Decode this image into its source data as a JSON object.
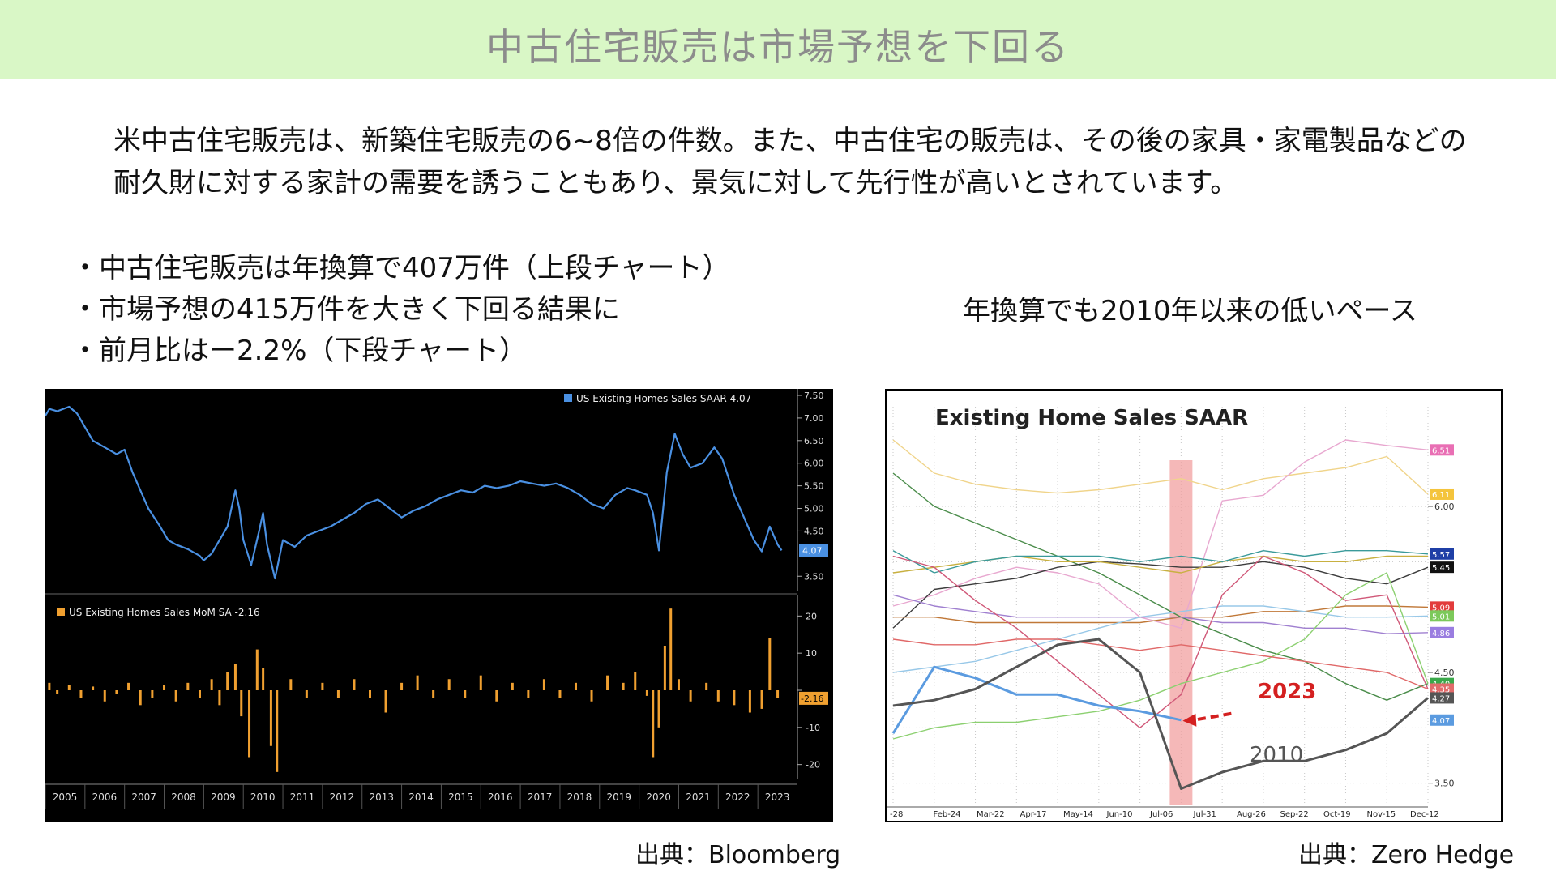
{
  "title": "中古住宅販売は市場予想を下回る",
  "intro": [
    "米中古住宅販売は、新築住宅販売の6~8倍の件数。また、中古住宅の販売は、その後の家具・家電製品などの",
    "耐久財に対する家計の需要を誘うこともあり、景気に対して先行性が高いとされています。"
  ],
  "bullets": [
    "・中古住宅販売は年換算で407万件（上段チャート）",
    "・市場予想の415万件を大きく下回る結果に",
    "・前月比はー2.2%（下段チャート）"
  ],
  "right_heading": "年換算でも2010年以来の低いペース",
  "sources": {
    "left": "出典：Bloomberg",
    "right": "出典：Zero Hedge"
  },
  "colors": {
    "title_bar": "#d9f7c6",
    "bloomberg_line": "#4a90e2",
    "bloomberg_bar": "#f0a030",
    "highlight_2023": "#f2a0a0",
    "arrow_2023": "#d42020"
  },
  "chart_data": [
    {
      "type": "line",
      "legend": "US Existing Homes Sales SAAR 4.07",
      "last_value_label": "4.07",
      "ylim": [
        3.2,
        7.5
      ],
      "yticks": [
        "7.50",
        "7.00",
        "6.50",
        "6.00",
        "5.50",
        "5.00",
        "4.50",
        "3.50"
      ],
      "ytick_values": [
        7.5,
        7.0,
        6.5,
        6.0,
        5.5,
        5.0,
        4.5,
        3.5
      ],
      "x_labels": [
        "2005",
        "2006",
        "2007",
        "2008",
        "2009",
        "2010",
        "2011",
        "2012",
        "2013",
        "2014",
        "2015",
        "2016",
        "2017",
        "2018",
        "2019",
        "2020",
        "2021",
        "2022",
        "2023"
      ],
      "x_start": 2005.0,
      "x_end": 2024.0,
      "series": [
        {
          "x": [
            2005.0,
            2005.1,
            2005.3,
            2005.6,
            2005.8,
            2006.0,
            2006.2,
            2006.5,
            2006.8,
            2007.0,
            2007.2,
            2007.4,
            2007.6,
            2007.9,
            2008.1,
            2008.3,
            2008.6,
            2008.9,
            2009.0,
            2009.2,
            2009.4,
            2009.6,
            2009.8,
            2009.9,
            2010.0,
            2010.2,
            2010.4,
            2010.5,
            2010.6,
            2010.8,
            2011.0,
            2011.3,
            2011.6,
            2011.9,
            2012.2,
            2012.5,
            2012.8,
            2013.1,
            2013.4,
            2013.7,
            2014.0,
            2014.3,
            2014.6,
            2014.9,
            2015.2,
            2015.5,
            2015.8,
            2016.1,
            2016.4,
            2016.7,
            2017.0,
            2017.3,
            2017.6,
            2017.9,
            2018.2,
            2018.5,
            2018.8,
            2019.1,
            2019.4,
            2019.7,
            2019.9,
            2020.2,
            2020.35,
            2020.5,
            2020.7,
            2020.9,
            2021.1,
            2021.3,
            2021.6,
            2021.9,
            2022.1,
            2022.4,
            2022.7,
            2022.9,
            2023.1,
            2023.3,
            2023.5,
            2023.6
          ],
          "y": [
            7.05,
            7.2,
            7.15,
            7.25,
            7.1,
            6.8,
            6.5,
            6.35,
            6.2,
            6.3,
            5.8,
            5.4,
            5.0,
            4.6,
            4.3,
            4.2,
            4.1,
            3.95,
            3.85,
            4.0,
            4.3,
            4.6,
            5.4,
            5.0,
            4.3,
            3.75,
            4.5,
            4.9,
            4.2,
            3.45,
            4.3,
            4.15,
            4.4,
            4.5,
            4.6,
            4.75,
            4.9,
            5.1,
            5.2,
            5.0,
            4.8,
            4.95,
            5.05,
            5.2,
            5.3,
            5.4,
            5.35,
            5.5,
            5.45,
            5.5,
            5.6,
            5.55,
            5.5,
            5.55,
            5.45,
            5.3,
            5.1,
            5.0,
            5.3,
            5.45,
            5.4,
            5.3,
            4.9,
            4.07,
            5.8,
            6.65,
            6.2,
            5.9,
            6.0,
            6.35,
            6.1,
            5.3,
            4.7,
            4.3,
            4.05,
            4.6,
            4.2,
            4.07
          ]
        }
      ]
    },
    {
      "type": "bar",
      "legend": "US Existing Homes Sales MoM SA -2.16",
      "last_value_label": "-2.16",
      "ylim": [
        -24,
        24
      ],
      "yticks": [
        "20",
        "10",
        "0",
        "-10",
        "-20"
      ],
      "ytick_values": [
        20,
        10,
        0,
        -10,
        -20
      ],
      "x_start": 2005.0,
      "x_end": 2024.0,
      "series": [
        {
          "x": [
            2005.1,
            2005.3,
            2005.6,
            2005.9,
            2006.2,
            2006.5,
            2006.8,
            2007.1,
            2007.4,
            2007.7,
            2008.0,
            2008.3,
            2008.6,
            2008.9,
            2009.2,
            2009.4,
            2009.6,
            2009.8,
            2009.95,
            2010.15,
            2010.35,
            2010.5,
            2010.7,
            2010.85,
            2011.2,
            2011.6,
            2012.0,
            2012.4,
            2012.8,
            2013.2,
            2013.6,
            2014.0,
            2014.4,
            2014.8,
            2015.2,
            2015.6,
            2016.0,
            2016.4,
            2016.8,
            2017.2,
            2017.6,
            2018.0,
            2018.4,
            2018.8,
            2019.2,
            2019.6,
            2019.9,
            2020.2,
            2020.35,
            2020.5,
            2020.65,
            2020.8,
            2021.0,
            2021.3,
            2021.7,
            2022.0,
            2022.4,
            2022.8,
            2023.1,
            2023.3,
            2023.5
          ],
          "y": [
            2,
            -1,
            1.5,
            -2,
            1,
            -3,
            -1,
            2,
            -4,
            -2,
            1.5,
            -3,
            2,
            -2,
            3,
            -4,
            5,
            7,
            -7,
            -18,
            11,
            6,
            -15,
            -22,
            3,
            -2,
            2,
            -2,
            3,
            -2,
            -6,
            2,
            4,
            -2,
            3,
            -2,
            4,
            -3,
            2,
            -2,
            3,
            -2,
            2,
            -3,
            4,
            2,
            5,
            -1.5,
            -18,
            -10,
            12,
            22,
            3,
            -3,
            2,
            -3,
            -4,
            -6,
            -5,
            14,
            -2.16
          ]
        }
      ]
    },
    {
      "type": "line",
      "title": "Existing Home Sales SAAR",
      "x_labels": [
        "-28",
        "Feb-24",
        "Mar-22",
        "Apr-17",
        "May-14",
        "Jun-10",
        "Jul-06",
        "Jul-31",
        "Aug-26",
        "Sep-22",
        "Oct-19",
        "Nov-15",
        "Dec-12"
      ],
      "ylim": [
        3.3,
        6.9
      ],
      "yticks": [
        "6.00",
        "4.50",
        "3.50"
      ],
      "ytick_values": [
        6.0,
        4.5,
        3.5
      ],
      "end_labels": [
        {
          "text": "6.51",
          "color": "#e96fb4",
          "value": 6.51
        },
        {
          "text": "6.11",
          "color": "#f4c43c",
          "value": 6.11
        },
        {
          "text": "5.57",
          "color": "#1f3fa6",
          "value": 5.57
        },
        {
          "text": "5.45",
          "color": "#111111",
          "value": 5.45
        },
        {
          "text": "5.09",
          "color": "#e23c3c",
          "value": 5.09
        },
        {
          "text": "5.01",
          "color": "#7cc95a",
          "value": 5.01
        },
        {
          "text": "4.86",
          "color": "#9a7de0",
          "value": 4.86
        },
        {
          "text": "4.40",
          "color": "#3aa84a",
          "value": 4.4
        },
        {
          "text": "4.35",
          "color": "#e26b6b",
          "value": 4.35
        },
        {
          "text": "4.27",
          "color": "#555555",
          "value": 4.27
        },
        {
          "text": "4.07",
          "color": "#5b9be0",
          "value": 4.07
        }
      ],
      "highlight_label": "2023",
      "baseline_label": "2010",
      "series": [
        {
          "color": "#f0d48a",
          "values": [
            6.6,
            6.3,
            6.2,
            6.15,
            6.12,
            6.15,
            6.2,
            6.25,
            6.15,
            6.25,
            6.3,
            6.35,
            6.45,
            6.11
          ]
        },
        {
          "color": "#e8a8d0",
          "values": [
            5.1,
            5.2,
            5.35,
            5.45,
            5.4,
            5.3,
            5.0,
            4.9,
            6.05,
            6.1,
            6.4,
            6.6,
            6.55,
            6.51
          ]
        },
        {
          "color": "#4a8c4a",
          "values": [
            6.3,
            6.0,
            5.85,
            5.7,
            5.55,
            5.4,
            5.2,
            5.0,
            4.85,
            4.7,
            4.6,
            4.4,
            4.25,
            4.4
          ]
        },
        {
          "color": "#3c3c3c",
          "values": [
            4.9,
            5.25,
            5.3,
            5.35,
            5.45,
            5.5,
            5.48,
            5.45,
            5.45,
            5.5,
            5.45,
            5.35,
            5.3,
            5.45
          ]
        },
        {
          "color": "#c8b040",
          "values": [
            5.4,
            5.45,
            5.5,
            5.55,
            5.5,
            5.5,
            5.45,
            5.4,
            5.5,
            5.55,
            5.5,
            5.5,
            5.55,
            5.55
          ]
        },
        {
          "color": "#3a9a9a",
          "values": [
            5.6,
            5.4,
            5.5,
            5.55,
            5.55,
            5.55,
            5.5,
            5.55,
            5.5,
            5.6,
            5.55,
            5.6,
            5.6,
            5.57
          ]
        },
        {
          "color": "#c07838",
          "values": [
            5.0,
            5.0,
            4.95,
            4.95,
            4.95,
            4.95,
            4.95,
            5.0,
            5.0,
            5.05,
            5.05,
            5.1,
            5.1,
            5.09
          ]
        },
        {
          "color": "#a080d0",
          "values": [
            5.2,
            5.1,
            5.05,
            5.0,
            5.0,
            5.0,
            5.0,
            5.0,
            4.95,
            4.95,
            4.9,
            4.9,
            4.85,
            4.86
          ]
        },
        {
          "color": "#98c8e8",
          "values": [
            4.5,
            4.55,
            4.6,
            4.7,
            4.8,
            4.9,
            5.0,
            5.05,
            5.1,
            5.1,
            5.05,
            5.0,
            5.0,
            5.01
          ]
        },
        {
          "color": "#d05878",
          "values": [
            5.55,
            5.45,
            5.15,
            4.9,
            4.6,
            4.3,
            4.0,
            4.3,
            5.2,
            5.55,
            5.4,
            5.15,
            5.2,
            4.35
          ]
        },
        {
          "color": "#8cd070",
          "values": [
            3.9,
            4.0,
            4.05,
            4.05,
            4.1,
            4.15,
            4.25,
            4.4,
            4.5,
            4.6,
            4.8,
            5.2,
            5.4,
            4.4
          ]
        },
        {
          "color": "#e06868",
          "values": [
            4.8,
            4.75,
            4.75,
            4.8,
            4.8,
            4.75,
            4.7,
            4.75,
            4.7,
            4.65,
            4.6,
            4.55,
            4.5,
            4.35
          ]
        },
        {
          "color": "#5b9be0",
          "width": 3,
          "values": [
            3.95,
            4.55,
            4.45,
            4.3,
            4.3,
            4.2,
            4.15,
            4.07
          ]
        },
        {
          "color": "#555555",
          "width": 3,
          "values": [
            4.2,
            4.25,
            4.35,
            4.55,
            4.75,
            4.8,
            4.5,
            3.45,
            3.6,
            3.7,
            3.7,
            3.8,
            3.95,
            4.27
          ]
        }
      ]
    }
  ]
}
